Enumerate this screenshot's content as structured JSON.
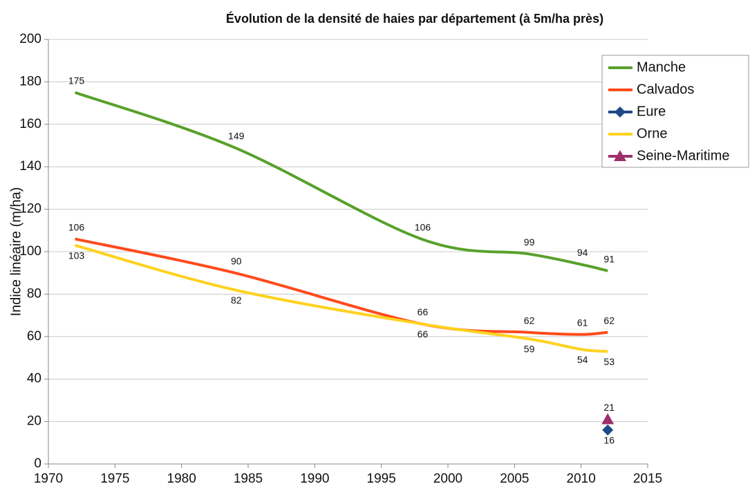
{
  "chart_data": {
    "type": "line",
    "title": "Évolution de la densité de haies par département (à 5m/ha près)",
    "y_label": "Indice linéaire (m/ha)",
    "x": [
      1972,
      1984,
      1998,
      2006,
      2010,
      2012
    ],
    "series": [
      {
        "name": "Manche",
        "color": "#57a12a",
        "values": [
          175,
          149,
          106,
          99,
          94,
          91
        ]
      },
      {
        "name": "Calvados",
        "color": "#ff4a1c",
        "values": [
          106,
          90,
          66,
          62,
          61,
          62
        ]
      },
      {
        "name": "Eure",
        "color": "#1e4a86",
        "marker": "diamond",
        "values": [
          null,
          null,
          null,
          null,
          null,
          16
        ]
      },
      {
        "name": "Orne",
        "color": "#ffd21e",
        "values": [
          103,
          82,
          66,
          59,
          54,
          53
        ]
      },
      {
        "name": "Seine-Maritime",
        "color": "#9e2f6b",
        "marker": "triangle",
        "values": [
          null,
          null,
          null,
          null,
          null,
          21
        ]
      }
    ],
    "label_side": [
      "above",
      "above",
      "below",
      "below",
      "above"
    ],
    "xlim": [
      1970,
      2015
    ],
    "xticks": [
      1970,
      1975,
      1980,
      1985,
      1990,
      1995,
      2000,
      2005,
      2010,
      2015
    ],
    "ylim": [
      0,
      200
    ],
    "yticks": [
      0,
      20,
      40,
      60,
      80,
      100,
      120,
      140,
      160,
      180,
      200
    ],
    "grid": true,
    "legend": "right"
  }
}
